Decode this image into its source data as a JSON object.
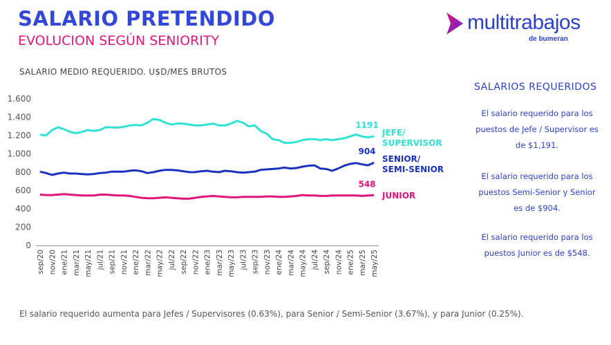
{
  "header": {
    "title": "SALARIO PRETENDIDO",
    "subtitle": "EVOLUCION SEGÚN SENIORITY"
  },
  "logo": {
    "name": "multitrabajos",
    "tagline": "de bumeran"
  },
  "chart_data": {
    "type": "line",
    "ylabel": "SALARIO MEDIO REQUERIDO. U$D/MES BRUTOS",
    "categories": [
      "sep/20",
      null,
      "nov/20",
      null,
      "ene/21",
      null,
      "mar/21",
      null,
      "may/21",
      null,
      "jul/21",
      null,
      "sep/21",
      null,
      "nov/21",
      null,
      "ene/22",
      null,
      "mar/22",
      null,
      "may/22",
      null,
      "jul/22",
      null,
      "sep/22",
      null,
      "nov/22",
      null,
      "ene/23",
      null,
      "mar/23",
      null,
      "may/23",
      null,
      "jul/23",
      null,
      "sep/23",
      null,
      "nov/23",
      null,
      "ene/24",
      null,
      "mar/24",
      null,
      "may/24",
      null,
      "jul/24",
      null,
      "sep/24",
      null,
      "nov/24",
      null,
      "ene/25",
      null,
      "mar/25",
      null,
      "may/25"
    ],
    "ylim": [
      0,
      1600
    ],
    "yticks": [
      0,
      200,
      400,
      600,
      800,
      {
        "value": 1000,
        "label": "1.000"
      },
      {
        "value": 1200,
        "label": "1.200"
      },
      {
        "value": 1400,
        "label": "1.400"
      },
      {
        "value": 1600,
        "label": "1.600"
      }
    ],
    "grid": false,
    "series": [
      {
        "name": "JEFE/ SUPERVISOR",
        "color": "#2ee3d3",
        "values": [
          1210,
          1200,
          1260,
          1290,
          1270,
          1240,
          1225,
          1240,
          1260,
          1250,
          1260,
          1290,
          1290,
          1285,
          1295,
          1310,
          1315,
          1310,
          1340,
          1380,
          1370,
          1340,
          1320,
          1330,
          1330,
          1320,
          1310,
          1310,
          1320,
          1330,
          1310,
          1310,
          1330,
          1360,
          1340,
          1300,
          1310,
          1250,
          1220,
          1160,
          1150,
          1120,
          1120,
          1130,
          1150,
          1160,
          1160,
          1150,
          1160,
          1150,
          1160,
          1170,
          1190,
          1210,
          1190,
          1180,
          1191
        ],
        "end_label": 1191
      },
      {
        "name": "SENIOR/ SEMI-SENIOR",
        "color": "#1a30c2",
        "values": [
          805,
          790,
          770,
          785,
          795,
          785,
          785,
          780,
          775,
          780,
          790,
          795,
          805,
          805,
          805,
          815,
          820,
          810,
          790,
          800,
          815,
          825,
          825,
          820,
          810,
          800,
          800,
          810,
          815,
          805,
          800,
          815,
          810,
          800,
          795,
          800,
          805,
          825,
          830,
          835,
          840,
          850,
          840,
          845,
          860,
          870,
          875,
          840,
          835,
          815,
          840,
          870,
          890,
          900,
          885,
          875,
          904
        ],
        "end_label": 904
      },
      {
        "name": "JUNIOR",
        "color": "#e0157a",
        "values": [
          555,
          550,
          550,
          555,
          560,
          555,
          550,
          545,
          545,
          545,
          555,
          555,
          550,
          545,
          545,
          540,
          530,
          520,
          515,
          515,
          520,
          525,
          520,
          515,
          510,
          510,
          520,
          530,
          535,
          540,
          535,
          530,
          525,
          525,
          530,
          530,
          530,
          530,
          535,
          535,
          530,
          530,
          535,
          540,
          550,
          545,
          545,
          540,
          540,
          545,
          545,
          545,
          545,
          545,
          540,
          545,
          548
        ],
        "end_label": 548
      }
    ]
  },
  "side_panel": {
    "title": "SALARIOS REQUERIDOS",
    "paragraphs": [
      "El salario requerido para los puestos de Jefe / Supervisor es de $1,191.",
      "El salario requerido para los puestos Semi-Senior y Senior es de $904.",
      "El salario requerido para los puestos Junior es de $548."
    ]
  },
  "footer": "El salario requerido aumenta para Jefes / Supervisores (0.63%), para Senior / Semi-Senior (3.67%), y  para Junior (0.25%)."
}
